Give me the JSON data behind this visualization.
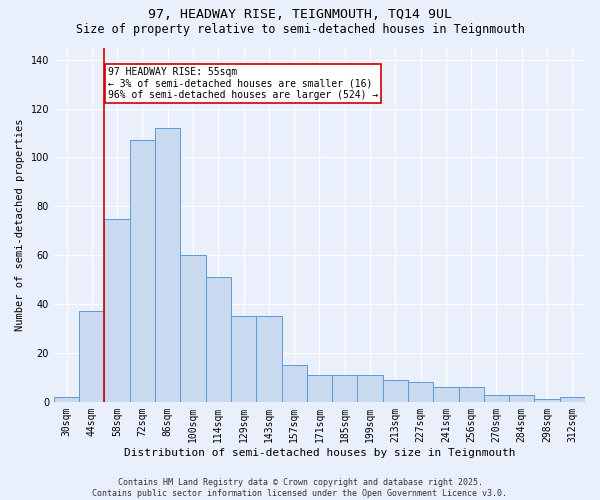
{
  "title1": "97, HEADWAY RISE, TEIGNMOUTH, TQ14 9UL",
  "title2": "Size of property relative to semi-detached houses in Teignmouth",
  "xlabel": "Distribution of semi-detached houses by size in Teignmouth",
  "ylabel": "Number of semi-detached properties",
  "categories": [
    "30sqm",
    "44sqm",
    "58sqm",
    "72sqm",
    "86sqm",
    "100sqm",
    "114sqm",
    "129sqm",
    "143sqm",
    "157sqm",
    "171sqm",
    "185sqm",
    "199sqm",
    "213sqm",
    "227sqm",
    "241sqm",
    "256sqm",
    "270sqm",
    "284sqm",
    "298sqm",
    "312sqm"
  ],
  "bar_values": [
    2,
    37,
    75,
    107,
    112,
    60,
    51,
    35,
    35,
    15,
    11,
    11,
    11,
    9,
    8,
    6,
    6,
    3,
    3,
    1,
    2
  ],
  "bar_color": "#c9d9f0",
  "bar_edge_color": "#5b9bd5",
  "red_line_x": 1.5,
  "annotation_text": "97 HEADWAY RISE: 55sqm\n← 3% of semi-detached houses are smaller (16)\n96% of semi-detached houses are larger (524) →",
  "annotation_box_color": "#ffffff",
  "annotation_border_color": "#cc0000",
  "red_line_color": "#cc0000",
  "ylim": [
    0,
    145
  ],
  "yticks": [
    0,
    20,
    40,
    60,
    80,
    100,
    120,
    140
  ],
  "bg_color": "#eaf0fb",
  "plot_bg_color": "#eaf0fb",
  "footer_text": "Contains HM Land Registry data © Crown copyright and database right 2025.\nContains public sector information licensed under the Open Government Licence v3.0.",
  "title1_fontsize": 9.5,
  "title2_fontsize": 8.5,
  "xlabel_fontsize": 8,
  "ylabel_fontsize": 7.5,
  "tick_fontsize": 7,
  "annotation_fontsize": 7,
  "footer_fontsize": 6
}
